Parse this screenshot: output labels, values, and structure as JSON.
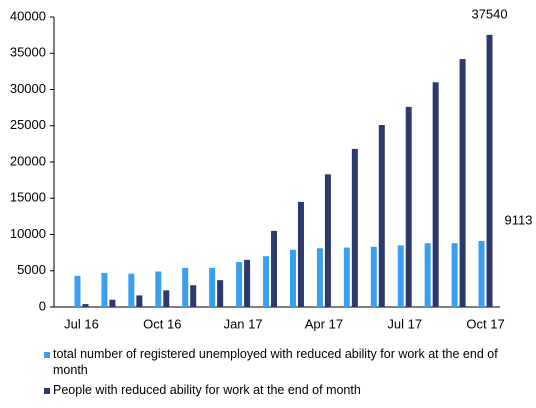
{
  "chart_data": {
    "type": "bar",
    "categories": [
      "Jul 16",
      null,
      null,
      "Oct 16",
      null,
      null,
      "Jan 17",
      null,
      null,
      "Apr 17",
      null,
      null,
      "Jul 17",
      null,
      null,
      "Oct 17"
    ],
    "series": [
      {
        "name": "total number of registered unemployed with reduced ability for work at the end of month",
        "color": "#3a9ff0",
        "values": [
          4300,
          4700,
          4600,
          4900,
          5400,
          5400,
          6200,
          7000,
          7900,
          8100,
          8200,
          8300,
          8500,
          8800,
          8800,
          9113
        ],
        "value_labels": [
          null,
          null,
          null,
          null,
          null,
          null,
          null,
          null,
          null,
          null,
          null,
          null,
          null,
          null,
          null,
          "9113"
        ]
      },
      {
        "name": "People with reduced ability for work at the end of month",
        "color": "#2c3a6b",
        "values": [
          400,
          1000,
          1600,
          2300,
          3000,
          3700,
          6500,
          10500,
          14500,
          18300,
          21800,
          25100,
          27600,
          31000,
          34200,
          37540
        ],
        "value_labels": [
          null,
          null,
          null,
          null,
          null,
          null,
          null,
          null,
          null,
          null,
          null,
          null,
          null,
          null,
          null,
          "37540"
        ]
      }
    ],
    "ylim": [
      0,
      40000
    ],
    "yticks": [
      0,
      5000,
      10000,
      15000,
      20000,
      25000,
      30000,
      35000,
      40000
    ],
    "grid": false
  }
}
